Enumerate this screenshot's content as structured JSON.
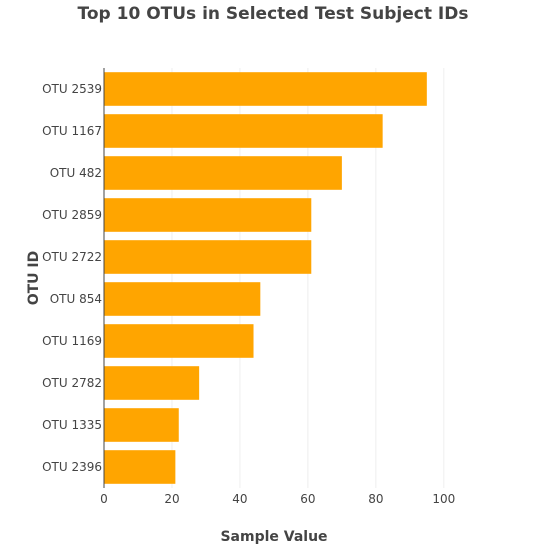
{
  "chart_data": {
    "type": "bar",
    "orientation": "horizontal",
    "title": "Top 10 OTUs in Selected Test Subject IDs",
    "xlabel": "Sample Value",
    "ylabel": "OTU ID",
    "categories": [
      "OTU 2539",
      "OTU 1167",
      "OTU 482",
      "OTU 2859",
      "OTU 2722",
      "OTU 854",
      "OTU 1169",
      "OTU 2782",
      "OTU 1335",
      "OTU 2396"
    ],
    "values": [
      95,
      82,
      70,
      61,
      61,
      46,
      44,
      28,
      22,
      21
    ],
    "xlim": [
      0,
      108
    ],
    "xticks": [
      0,
      20,
      40,
      60,
      80,
      100
    ],
    "grid": true,
    "legend": "none",
    "bar_color": "#FFA500"
  }
}
